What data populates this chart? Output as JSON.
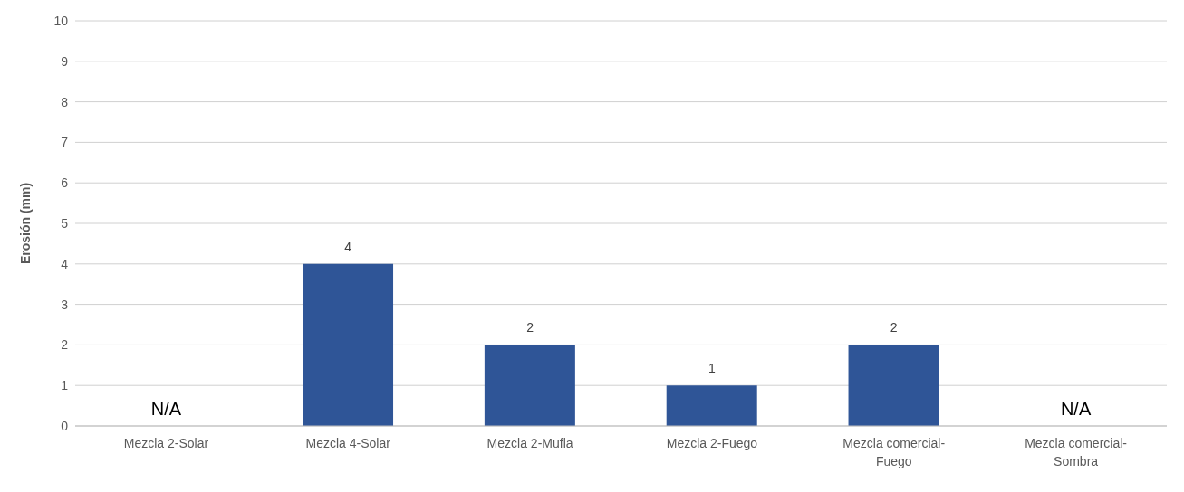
{
  "chart_data": {
    "type": "bar",
    "ylabel": "Erosión (mm)",
    "categories": [
      "Mezcla 2-Solar",
      "Mezcla 4-Solar",
      "Mezcla 2-Mufla",
      "Mezcla 2-Fuego",
      "Mezcla comercial-Fuego",
      "Mezcla comercial-Sombra"
    ],
    "values": [
      null,
      4,
      2,
      1,
      2,
      null
    ],
    "value_labels": [
      "N/A",
      "4",
      "2",
      "1",
      "2",
      "N/A"
    ],
    "color": "#2f5597",
    "ylim": [
      0,
      10
    ],
    "yticks": [
      0,
      1,
      2,
      3,
      4,
      5,
      6,
      7,
      8,
      9,
      10
    ],
    "grid": "y"
  }
}
